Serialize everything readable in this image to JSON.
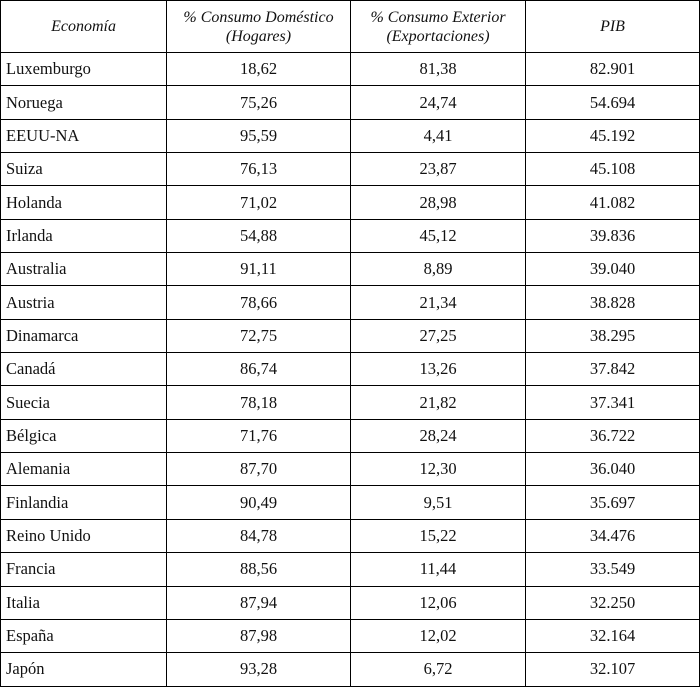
{
  "table": {
    "headers": [
      {
        "line1": "Economía",
        "line2": ""
      },
      {
        "line1": "% Consumo Doméstico",
        "line2": "(Hogares)"
      },
      {
        "line1": "% Consumo Exterior",
        "line2": "(Exportaciones)"
      },
      {
        "line1": "PIB",
        "line2": ""
      }
    ],
    "rows": [
      [
        "Luxemburgo",
        "18,62",
        "81,38",
        "82.901"
      ],
      [
        "Noruega",
        "75,26",
        "24,74",
        "54.694"
      ],
      [
        "EEUU-NA",
        "95,59",
        "4,41",
        "45.192"
      ],
      [
        "Suiza",
        "76,13",
        "23,87",
        "45.108"
      ],
      [
        "Holanda",
        "71,02",
        "28,98",
        "41.082"
      ],
      [
        "Irlanda",
        "54,88",
        "45,12",
        "39.836"
      ],
      [
        "Australia",
        "91,11",
        "8,89",
        "39.040"
      ],
      [
        "Austria",
        "78,66",
        "21,34",
        "38.828"
      ],
      [
        "Dinamarca",
        "72,75",
        "27,25",
        "38.295"
      ],
      [
        "Canadá",
        "86,74",
        "13,26",
        "37.842"
      ],
      [
        "Suecia",
        "78,18",
        "21,82",
        "37.341"
      ],
      [
        "Bélgica",
        "71,76",
        "28,24",
        "36.722"
      ],
      [
        "Alemania",
        "87,70",
        "12,30",
        "36.040"
      ],
      [
        "Finlandia",
        "90,49",
        "9,51",
        "35.697"
      ],
      [
        "Reino Unido",
        "84,78",
        "15,22",
        "34.476"
      ],
      [
        "Francia",
        "88,56",
        "11,44",
        "33.549"
      ],
      [
        "Italia",
        "87,94",
        "12,06",
        "32.250"
      ],
      [
        "España",
        "87,98",
        "12,02",
        "32.164"
      ],
      [
        "Japón",
        "93,28",
        "6,72",
        "32.107"
      ]
    ]
  }
}
